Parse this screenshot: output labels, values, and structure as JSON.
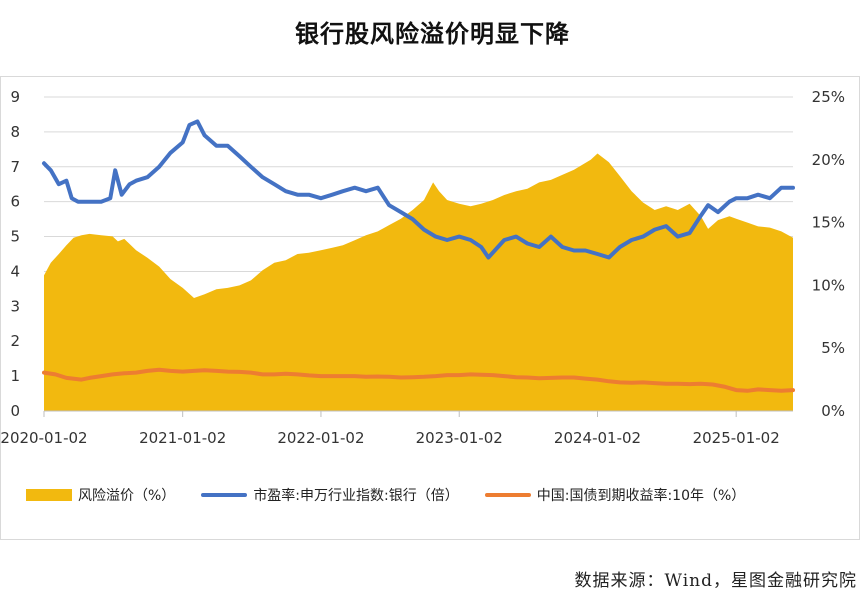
{
  "title": "银行股风险溢价明显下降",
  "source": "数据来源：Wind，星图金融研究院",
  "colors": {
    "risk_premium": "#f2b90f",
    "pe": "#4472c4",
    "bond": "#ed7d31",
    "grid": "#d9d9d9",
    "axis_text": "#333333"
  },
  "chart_data": {
    "type": "line",
    "x_type": "date",
    "x_tick_labels": [
      "2020-01-02",
      "2021-01-02",
      "2022-01-02",
      "2023-01-02",
      "2024-01-02",
      "2025-01-02"
    ],
    "x_range": [
      "2020-01-02",
      "2025-06-01"
    ],
    "y_left": {
      "min": 0,
      "max": 9,
      "ticks": [
        "0",
        "1",
        "2",
        "3",
        "4",
        "5",
        "6",
        "7",
        "8",
        "9"
      ]
    },
    "y_right": {
      "min": 0,
      "max": 0.25,
      "ticks": [
        "0%",
        "5%",
        "10%",
        "15%",
        "20%",
        "25%"
      ]
    },
    "grid": "horizontal",
    "legend_position": "bottom",
    "series": [
      {
        "name": "风险溢价（%）",
        "type": "area",
        "axis": "right",
        "color": "#f2b90f",
        "points": [
          [
            "2020-01-02",
            0.108
          ],
          [
            "2020-01-20",
            0.118
          ],
          [
            "2020-02-10",
            0.125
          ],
          [
            "2020-03-01",
            0.132
          ],
          [
            "2020-03-20",
            0.138
          ],
          [
            "2020-04-10",
            0.14
          ],
          [
            "2020-05-01",
            0.141
          ],
          [
            "2020-06-01",
            0.14
          ],
          [
            "2020-07-01",
            0.139
          ],
          [
            "2020-07-15",
            0.135
          ],
          [
            "2020-08-01",
            0.137
          ],
          [
            "2020-09-01",
            0.128
          ],
          [
            "2020-10-01",
            0.122
          ],
          [
            "2020-11-01",
            0.115
          ],
          [
            "2020-12-01",
            0.105
          ],
          [
            "2021-01-02",
            0.098
          ],
          [
            "2021-02-01",
            0.09
          ],
          [
            "2021-03-01",
            0.093
          ],
          [
            "2021-04-01",
            0.097
          ],
          [
            "2021-05-01",
            0.098
          ],
          [
            "2021-06-01",
            0.1
          ],
          [
            "2021-07-01",
            0.104
          ],
          [
            "2021-08-01",
            0.112
          ],
          [
            "2021-09-01",
            0.118
          ],
          [
            "2021-10-01",
            0.12
          ],
          [
            "2021-11-01",
            0.125
          ],
          [
            "2021-12-01",
            0.126
          ],
          [
            "2022-01-02",
            0.128
          ],
          [
            "2022-02-01",
            0.13
          ],
          [
            "2022-03-01",
            0.132
          ],
          [
            "2022-04-01",
            0.136
          ],
          [
            "2022-05-01",
            0.14
          ],
          [
            "2022-06-01",
            0.143
          ],
          [
            "2022-07-01",
            0.148
          ],
          [
            "2022-08-01",
            0.153
          ],
          [
            "2022-09-01",
            0.16
          ],
          [
            "2022-10-01",
            0.168
          ],
          [
            "2022-10-25",
            0.182
          ],
          [
            "2022-11-10",
            0.175
          ],
          [
            "2022-12-01",
            0.168
          ],
          [
            "2023-01-02",
            0.165
          ],
          [
            "2023-02-01",
            0.163
          ],
          [
            "2023-03-01",
            0.165
          ],
          [
            "2023-04-01",
            0.168
          ],
          [
            "2023-05-01",
            0.172
          ],
          [
            "2023-06-01",
            0.175
          ],
          [
            "2023-07-01",
            0.177
          ],
          [
            "2023-08-01",
            0.182
          ],
          [
            "2023-09-01",
            0.184
          ],
          [
            "2023-10-01",
            0.188
          ],
          [
            "2023-11-01",
            0.192
          ],
          [
            "2023-12-15",
            0.2
          ],
          [
            "2024-01-02",
            0.205
          ],
          [
            "2024-02-01",
            0.198
          ],
          [
            "2024-03-01",
            0.187
          ],
          [
            "2024-04-01",
            0.175
          ],
          [
            "2024-05-01",
            0.166
          ],
          [
            "2024-06-01",
            0.16
          ],
          [
            "2024-07-01",
            0.163
          ],
          [
            "2024-08-01",
            0.16
          ],
          [
            "2024-09-01",
            0.165
          ],
          [
            "2024-10-01",
            0.155
          ],
          [
            "2024-10-20",
            0.145
          ],
          [
            "2024-11-15",
            0.152
          ],
          [
            "2024-12-15",
            0.155
          ],
          [
            "2025-01-02",
            0.153
          ],
          [
            "2025-02-01",
            0.15
          ],
          [
            "2025-03-01",
            0.147
          ],
          [
            "2025-04-01",
            0.146
          ],
          [
            "2025-05-01",
            0.143
          ],
          [
            "2025-06-01",
            0.138
          ]
        ]
      },
      {
        "name": "市盈率:申万行业指数:银行（倍）",
        "type": "line",
        "axis": "left",
        "color": "#4472c4",
        "points": [
          [
            "2020-01-02",
            7.1
          ],
          [
            "2020-01-20",
            6.9
          ],
          [
            "2020-02-10",
            6.5
          ],
          [
            "2020-03-01",
            6.6
          ],
          [
            "2020-03-15",
            6.1
          ],
          [
            "2020-04-01",
            6.0
          ],
          [
            "2020-05-01",
            6.0
          ],
          [
            "2020-06-01",
            6.0
          ],
          [
            "2020-06-25",
            6.1
          ],
          [
            "2020-07-08",
            6.9
          ],
          [
            "2020-07-25",
            6.2
          ],
          [
            "2020-08-15",
            6.5
          ],
          [
            "2020-09-01",
            6.6
          ],
          [
            "2020-10-01",
            6.7
          ],
          [
            "2020-11-01",
            7.0
          ],
          [
            "2020-12-01",
            7.4
          ],
          [
            "2021-01-02",
            7.7
          ],
          [
            "2021-01-20",
            8.2
          ],
          [
            "2021-02-10",
            8.3
          ],
          [
            "2021-03-01",
            7.9
          ],
          [
            "2021-04-01",
            7.6
          ],
          [
            "2021-05-01",
            7.6
          ],
          [
            "2021-06-01",
            7.3
          ],
          [
            "2021-07-01",
            7.0
          ],
          [
            "2021-08-01",
            6.7
          ],
          [
            "2021-09-01",
            6.5
          ],
          [
            "2021-10-01",
            6.3
          ],
          [
            "2021-11-01",
            6.2
          ],
          [
            "2021-12-01",
            6.2
          ],
          [
            "2022-01-02",
            6.1
          ],
          [
            "2022-02-01",
            6.2
          ],
          [
            "2022-03-01",
            6.3
          ],
          [
            "2022-04-01",
            6.4
          ],
          [
            "2022-05-01",
            6.3
          ],
          [
            "2022-06-01",
            6.4
          ],
          [
            "2022-07-01",
            5.9
          ],
          [
            "2022-08-01",
            5.7
          ],
          [
            "2022-09-01",
            5.5
          ],
          [
            "2022-10-01",
            5.2
          ],
          [
            "2022-11-01",
            5.0
          ],
          [
            "2022-12-01",
            4.9
          ],
          [
            "2023-01-02",
            5.0
          ],
          [
            "2023-02-01",
            4.9
          ],
          [
            "2023-03-01",
            4.7
          ],
          [
            "2023-03-20",
            4.4
          ],
          [
            "2023-05-01",
            4.9
          ],
          [
            "2023-06-01",
            5.0
          ],
          [
            "2023-07-01",
            4.8
          ],
          [
            "2023-08-01",
            4.7
          ],
          [
            "2023-09-01",
            5.0
          ],
          [
            "2023-10-01",
            4.7
          ],
          [
            "2023-11-01",
            4.6
          ],
          [
            "2023-12-01",
            4.6
          ],
          [
            "2024-01-02",
            4.5
          ],
          [
            "2024-02-01",
            4.4
          ],
          [
            "2024-03-01",
            4.7
          ],
          [
            "2024-04-01",
            4.9
          ],
          [
            "2024-05-01",
            5.0
          ],
          [
            "2024-06-01",
            5.2
          ],
          [
            "2024-07-01",
            5.3
          ],
          [
            "2024-08-01",
            5.0
          ],
          [
            "2024-09-01",
            5.1
          ],
          [
            "2024-10-01",
            5.6
          ],
          [
            "2024-10-20",
            5.9
          ],
          [
            "2024-11-15",
            5.7
          ],
          [
            "2024-12-15",
            6.0
          ],
          [
            "2025-01-02",
            6.1
          ],
          [
            "2025-02-01",
            6.1
          ],
          [
            "2025-03-01",
            6.2
          ],
          [
            "2025-04-01",
            6.1
          ],
          [
            "2025-05-01",
            6.4
          ],
          [
            "2025-06-01",
            6.4
          ]
        ]
      },
      {
        "name": "中国:国债到期收益率:10年（%）",
        "type": "line",
        "axis": "left",
        "color": "#ed7d31",
        "points": [
          [
            "2020-01-02",
            1.1
          ],
          [
            "2020-02-01",
            1.05
          ],
          [
            "2020-03-01",
            0.95
          ],
          [
            "2020-04-10",
            0.9
          ],
          [
            "2020-05-01",
            0.95
          ],
          [
            "2020-06-01",
            1.0
          ],
          [
            "2020-07-01",
            1.05
          ],
          [
            "2020-08-01",
            1.08
          ],
          [
            "2020-09-01",
            1.1
          ],
          [
            "2020-10-01",
            1.15
          ],
          [
            "2020-11-01",
            1.18
          ],
          [
            "2020-12-01",
            1.15
          ],
          [
            "2021-01-02",
            1.13
          ],
          [
            "2021-02-01",
            1.15
          ],
          [
            "2021-03-01",
            1.17
          ],
          [
            "2021-04-01",
            1.15
          ],
          [
            "2021-05-01",
            1.13
          ],
          [
            "2021-06-01",
            1.12
          ],
          [
            "2021-07-01",
            1.1
          ],
          [
            "2021-08-01",
            1.05
          ],
          [
            "2021-09-01",
            1.05
          ],
          [
            "2021-10-01",
            1.07
          ],
          [
            "2021-11-01",
            1.05
          ],
          [
            "2021-12-01",
            1.02
          ],
          [
            "2022-01-02",
            1.0
          ],
          [
            "2022-02-01",
            1.0
          ],
          [
            "2022-03-01",
            1.0
          ],
          [
            "2022-04-01",
            1.0
          ],
          [
            "2022-05-01",
            0.98
          ],
          [
            "2022-06-01",
            0.99
          ],
          [
            "2022-07-01",
            0.98
          ],
          [
            "2022-08-01",
            0.96
          ],
          [
            "2022-09-01",
            0.97
          ],
          [
            "2022-10-01",
            0.98
          ],
          [
            "2022-11-01",
            1.0
          ],
          [
            "2022-12-01",
            1.03
          ],
          [
            "2023-01-02",
            1.03
          ],
          [
            "2023-02-01",
            1.05
          ],
          [
            "2023-03-01",
            1.04
          ],
          [
            "2023-04-01",
            1.03
          ],
          [
            "2023-05-01",
            1.0
          ],
          [
            "2023-06-01",
            0.97
          ],
          [
            "2023-07-01",
            0.96
          ],
          [
            "2023-08-01",
            0.94
          ],
          [
            "2023-09-01",
            0.95
          ],
          [
            "2023-10-01",
            0.96
          ],
          [
            "2023-11-01",
            0.96
          ],
          [
            "2023-12-01",
            0.93
          ],
          [
            "2024-01-02",
            0.9
          ],
          [
            "2024-02-01",
            0.85
          ],
          [
            "2024-03-01",
            0.82
          ],
          [
            "2024-04-01",
            0.81
          ],
          [
            "2024-05-01",
            0.82
          ],
          [
            "2024-06-01",
            0.8
          ],
          [
            "2024-07-01",
            0.78
          ],
          [
            "2024-08-01",
            0.78
          ],
          [
            "2024-09-01",
            0.77
          ],
          [
            "2024-10-01",
            0.78
          ],
          [
            "2024-11-01",
            0.76
          ],
          [
            "2024-12-01",
            0.7
          ],
          [
            "2025-01-02",
            0.6
          ],
          [
            "2025-02-01",
            0.58
          ],
          [
            "2025-03-01",
            0.62
          ],
          [
            "2025-04-01",
            0.6
          ],
          [
            "2025-05-01",
            0.58
          ],
          [
            "2025-06-01",
            0.6
          ]
        ]
      }
    ]
  }
}
